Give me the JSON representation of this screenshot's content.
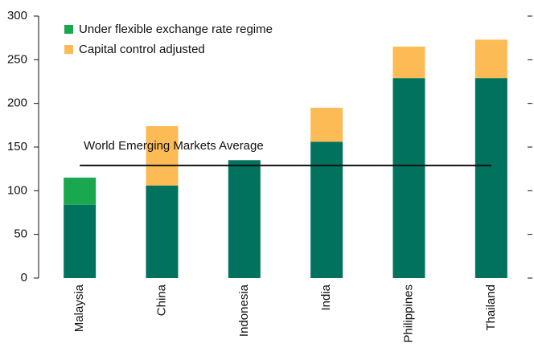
{
  "chart_data": {
    "type": "stacked_bar",
    "categories": [
      "Malaysia",
      "China",
      "Indonesia",
      "India",
      "Philippines",
      "Thailand"
    ],
    "series": [
      {
        "color": "#00725e",
        "values": [
          84,
          106,
          135,
          156,
          229,
          229
        ]
      },
      {
        "name": "Under flexible exchange rate regime",
        "color": "#19a84e",
        "values": [
          31,
          0,
          0,
          0,
          0,
          0
        ]
      },
      {
        "name": "Capital control adjusted",
        "color": "#fdbb55",
        "values": [
          0,
          68,
          0,
          39,
          36,
          44
        ]
      }
    ],
    "reference_line": {
      "label": "World Emerging Markets Average",
      "value": 129,
      "color": "#111111"
    },
    "ylim": [
      0,
      300
    ],
    "yticks": [
      0,
      50,
      100,
      150,
      200,
      250,
      300
    ],
    "legend": "upper left"
  }
}
